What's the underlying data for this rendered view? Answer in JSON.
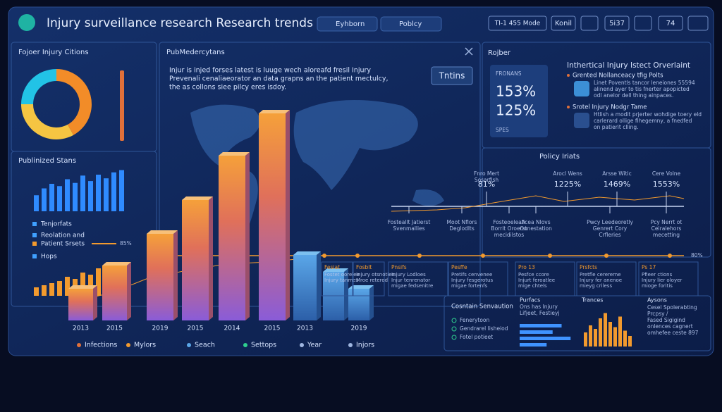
{
  "header": {
    "title": "Injury surveillance research Research trends",
    "search": "Eyhborn",
    "tab": "Poblcy",
    "mode": "TI-1 455 Mode",
    "konil": "Konil",
    "count": "5i37",
    "num": "74"
  },
  "donut_panel": {
    "title": "Fojoer Injury Citions",
    "chart": {
      "type": "pie",
      "values": [
        42,
        33,
        25
      ],
      "colors": [
        "#f28c28",
        "#f5c542",
        "#22c3e6"
      ]
    }
  },
  "stats_panel": {
    "title": "Publinized Stans",
    "bars": {
      "type": "bar",
      "values": [
        35,
        50,
        60,
        55,
        70,
        62,
        78,
        66,
        80,
        72,
        85,
        90
      ],
      "color": "#2f8bff"
    },
    "legend": [
      "Tenjorfats",
      "Reolation and",
      "Patient Srsets",
      "Hops"
    ],
    "legend_value": "85%",
    "small_bars": {
      "type": "bar",
      "values": [
        20,
        25,
        30,
        35,
        45,
        40,
        55,
        50,
        65,
        70
      ],
      "color": "#f29a2e"
    }
  },
  "main_panel": {
    "title": "PubMedercytans",
    "text": [
      "Injur is injed forses latest is luuge wech aloreafd fresil Injury",
      "Prevenali cenaliaeorator an data grapns an the patient mectulcy,",
      "the as collons siee pilcy eres isdoy."
    ],
    "button": "Tntins",
    "chart": {
      "type": "bar",
      "categories": [
        "2013",
        "2015",
        "2019",
        "2015",
        "2014",
        "2015",
        "2013",
        null,
        "2019"
      ],
      "values": [
        15,
        26,
        41,
        57,
        78,
        98,
        31,
        23,
        15
      ],
      "ylim": [
        0,
        100
      ]
    },
    "legend": [
      "Infections",
      "Mylors",
      "Seach",
      "Settops",
      "Year",
      "Injors"
    ]
  },
  "right_panel": {
    "title": "Rojber",
    "card": [
      "FRONANS",
      "153%",
      "125%",
      "SPES"
    ],
    "overview": {
      "title": "Inthertical Injury Istect Orverlaint",
      "items": [
        {
          "title": "Grented Nollanceacy tfig Polts",
          "text": [
            "Linet Poventls tancor leneiones 55594",
            "alinend ayer to tis fnerter apopicted",
            "odl anelor dell thing ainpaces."
          ]
        },
        {
          "title": "Srotel Injury Nodgr Tame",
          "text": [
            "Htlish a modit prjerter wohdige toery eld",
            "carlerard ollige fihegemny, a fnedfed",
            "on patierit clling."
          ]
        }
      ]
    }
  },
  "policy": {
    "title": "Policy Iriats",
    "points": [
      {
        "label": [
          "Fnro Mert",
          "Sosarfish"
        ],
        "value": "81%"
      },
      {
        "label": [
          "Arocl Wens"
        ],
        "value": "1225%"
      },
      {
        "label": [
          "Arsse Witic"
        ],
        "value": "1469%"
      },
      {
        "label": [
          "Cere Volne"
        ],
        "value": "1553%"
      }
    ],
    "below": [
      [
        "Fosteallt Jatierst",
        "Svenmallies"
      ],
      [
        "Moot Nflors",
        "Deglodlts"
      ],
      [
        "Fosteoeleati",
        "Borrit Oroerst",
        "mecidilstos"
      ],
      [
        "Acea Nlovs",
        "Oonestation"
      ],
      [
        "Pwcy Leedeoretly",
        "Genrert Cory",
        "Crfleries"
      ],
      [
        "Pcy Nerrt ot",
        "Ceiralehors",
        "mecetting"
      ]
    ],
    "line_label": "80%"
  },
  "cards": [
    {
      "title": "Fesiat",
      "text": [
        "Fostet oorelee",
        "Injury tanmes"
      ]
    },
    {
      "title": "Fosblt",
      "text": [
        "Injury otsnotien",
        "Mroe reterod"
      ]
    },
    {
      "title": "Pnsifs",
      "text": [
        "Injury Lodloes",
        "Injur tenrenator",
        "migae fedsenitre"
      ]
    },
    {
      "title": "Pesffe",
      "text": [
        "Pretifs cenvenee",
        "Injury fesgerotus",
        "migae fortenfs"
      ]
    },
    {
      "title": "Pro 13",
      "text": [
        "Pesfce ccore",
        "Injurt feroatlee",
        "mige chtels"
      ]
    },
    {
      "title": "Prsfcts",
      "text": [
        "Pretfle cerererne",
        "Injury fer anenoe",
        "mieyg criless"
      ]
    },
    {
      "title": "Ps 17",
      "text": [
        "Pfieer ctions",
        "Injury lier oloyer",
        "mioge foritis"
      ]
    }
  ],
  "bottom": {
    "service": {
      "title": "Cosntain Senvaution",
      "items": [
        "Fenerytoon",
        "Gendrarel lisheiod",
        "Fotel potieet"
      ]
    },
    "purfacs": {
      "title": "Purfacs",
      "text": [
        "Ons has Injury",
        "Lifjeet, Festieyj"
      ],
      "bars": {
        "type": "bar",
        "values": [
          70,
          55,
          85,
          45
        ],
        "color": "#3f93ff"
      }
    },
    "trances": {
      "title": "Trances",
      "bars": {
        "type": "bar",
        "values": [
          40,
          60,
          50,
          80,
          95,
          70,
          55,
          85,
          45,
          30
        ],
        "color": "#f29a2e"
      }
    },
    "aysons": {
      "title": "Aysons",
      "text": [
        "Cesel Spolerabting",
        "Prcpsy /",
        "Fased Sigigind",
        "onlences cagnert",
        "omhefee ceste 897"
      ]
    }
  }
}
